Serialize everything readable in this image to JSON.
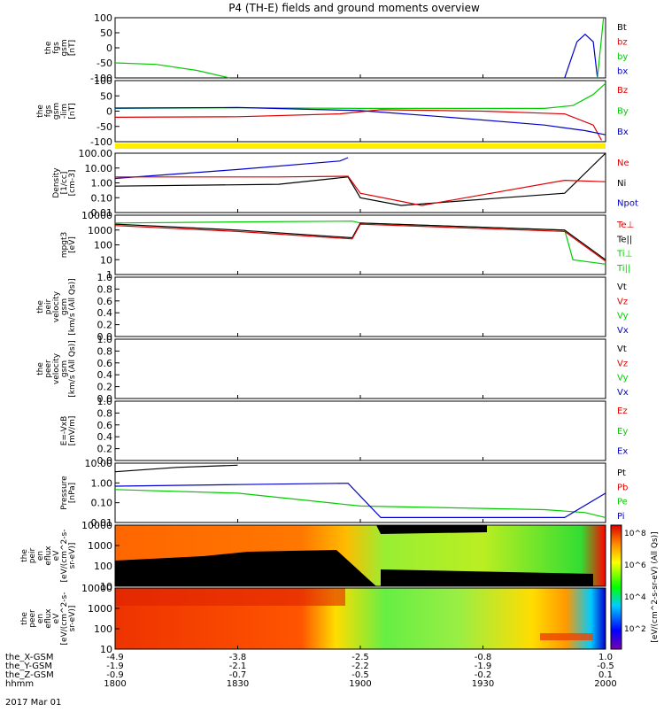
{
  "title": "P4 (TH-E) fields and ground moments overview",
  "date_label": "2017 Mar 01",
  "colors": {
    "black": "#000000",
    "red": "#dd0000",
    "green": "#00cc00",
    "blue": "#0000cc",
    "yellow": "#ffee00"
  },
  "panels": [
    {
      "id": "fgs",
      "ylabel": [
        "the",
        "fgs",
        "gsm",
        "[nT]"
      ],
      "ticks": [
        "100",
        "50",
        "0",
        "-50",
        "-100"
      ],
      "legend": [
        {
          "label": "Bt",
          "color": "#000000"
        },
        {
          "label": "bz",
          "color": "#dd0000"
        },
        {
          "label": "by",
          "color": "#00cc00"
        },
        {
          "label": "bx",
          "color": "#0000cc"
        }
      ]
    },
    {
      "id": "fgs_lim",
      "ylabel": [
        "the",
        "fgs",
        "gsm",
        "-lim",
        "[nT]"
      ],
      "ticks": [
        "100",
        "50",
        "0",
        "-50",
        "-100"
      ],
      "legend": [
        {
          "label": "Bz",
          "color": "#dd0000"
        },
        {
          "label": "By",
          "color": "#00cc00"
        },
        {
          "label": "Bx",
          "color": "#0000cc"
        }
      ]
    },
    {
      "id": "density",
      "ylabel": [
        "Density",
        "[1/cc]",
        "[cm-3]"
      ],
      "ticks": [
        "100.00",
        "10.00",
        "1.00",
        "0.10",
        "0.01"
      ],
      "legend": [
        {
          "label": "Ne",
          "color": "#dd0000"
        },
        {
          "label": "Ni",
          "color": "#000000"
        },
        {
          "label": "Npot",
          "color": "#0000cc"
        }
      ]
    },
    {
      "id": "temp",
      "ylabel": [
        "mpgt3",
        "[eV]"
      ],
      "ticks": [
        "10000",
        "1000",
        "100",
        "10",
        "1"
      ],
      "legend": [
        {
          "label": "Te⊥",
          "color": "#dd0000"
        },
        {
          "label": "Te||",
          "color": "#000000"
        },
        {
          "label": "Ti⊥",
          "color": "#00cc00"
        },
        {
          "label": "Ti||",
          "color": "#00cc00"
        }
      ]
    },
    {
      "id": "peir_vel",
      "ylabel": [
        "the",
        "peir",
        "velocity",
        "gsm",
        "[km/s (All Qs)]"
      ],
      "ticks": [
        "1.0",
        "0.8",
        "0.6",
        "0.4",
        "0.2",
        "0.0"
      ],
      "legend": [
        {
          "label": "Vt",
          "color": "#000000"
        },
        {
          "label": "Vz",
          "color": "#dd0000"
        },
        {
          "label": "Vy",
          "color": "#00cc00"
        },
        {
          "label": "Vx",
          "color": "#0000cc"
        }
      ]
    },
    {
      "id": "peer_vel",
      "ylabel": [
        "the",
        "peer",
        "velocity",
        "gsm",
        "[km/s (All Qs)]"
      ],
      "ticks": [
        "1.0",
        "0.8",
        "0.6",
        "0.4",
        "0.2",
        "0.0"
      ],
      "legend": [
        {
          "label": "Vt",
          "color": "#000000"
        },
        {
          "label": "Vz",
          "color": "#dd0000"
        },
        {
          "label": "Vy",
          "color": "#00cc00"
        },
        {
          "label": "Vx",
          "color": "#0000cc"
        }
      ]
    },
    {
      "id": "efield",
      "ylabel": [
        "E=-VxB",
        "[mV/m]"
      ],
      "ticks": [
        "1.0",
        "0.8",
        "0.6",
        "0.4",
        "0.2",
        "0.0"
      ],
      "legend": [
        {
          "label": "Ez",
          "color": "#dd0000"
        },
        {
          "label": "Ey",
          "color": "#00cc00"
        },
        {
          "label": "Ex",
          "color": "#0000cc"
        }
      ]
    },
    {
      "id": "pressure",
      "ylabel": [
        "Pressure",
        "[nPa]"
      ],
      "ticks": [
        "10.00",
        "1.00",
        "0.10",
        "0.01"
      ],
      "legend": [
        {
          "label": "Pt",
          "color": "#000000"
        },
        {
          "label": "Pb",
          "color": "#dd0000"
        },
        {
          "label": "Pe",
          "color": "#00cc00"
        },
        {
          "label": "Pi",
          "color": "#0000cc"
        }
      ]
    },
    {
      "id": "peir_spec",
      "ylabel": [
        "the",
        "peir",
        "en",
        "eflux",
        "eV",
        "[eV/(cm^2-s-",
        "sr-eV)]"
      ],
      "ticks": [
        "10000",
        "1000",
        "100",
        "10"
      ],
      "legend": []
    },
    {
      "id": "peer_spec",
      "ylabel": [
        "the",
        "peer",
        "en",
        "eflux",
        "eV",
        "[eV/(cm^2-s-",
        "sr-eV)]"
      ],
      "ticks": [
        "10000",
        "1000",
        "100",
        "10"
      ],
      "legend": []
    }
  ],
  "colorbar": {
    "label": "[eV/(cm^2-s-sr-eV) (All Qs)]",
    "ticks": [
      "10^8",
      "10^6",
      "10^4",
      "10^2"
    ]
  },
  "xaxis": {
    "row_labels": [
      "the_X-GSM",
      "the_Y-GSM",
      "the_Z-GSM",
      "hhmm"
    ],
    "columns": [
      {
        "x": "-4.9",
        "y": "-1.9",
        "z": "-0.9",
        "t": "1800"
      },
      {
        "x": "-3.8",
        "y": "-2.1",
        "z": "-0.7",
        "t": "1830"
      },
      {
        "x": "-2.5",
        "y": "-2.2",
        "z": "-0.5",
        "t": "1900"
      },
      {
        "x": "-0.8",
        "y": "-1.9",
        "z": "-0.2",
        "t": "1930"
      },
      {
        "x": "1.0",
        "y": "-0.5",
        "z": "0.1",
        "t": "2000"
      }
    ]
  },
  "chart_data": {
    "type": "line",
    "title": "P4 (TH-E) fields and ground moments overview",
    "x_label": "hhmm",
    "x_ticks": [
      "1800",
      "1830",
      "1900",
      "1930",
      "2000"
    ],
    "series": [
      {
        "panel": "fgs",
        "name": "by",
        "x": [
          1800,
          1810,
          1820,
          1828
        ],
        "values": [
          -50,
          -55,
          -75,
          -100
        ]
      },
      {
        "panel": "fgs",
        "name": "bx",
        "x": [
          1950,
          1953,
          1955,
          1957,
          1958
        ],
        "values": [
          -100,
          20,
          45,
          20,
          -100
        ]
      },
      {
        "panel": "fgs",
        "name": "by",
        "x": [
          1958,
          1959.5
        ],
        "values": [
          -100,
          100
        ]
      },
      {
        "panel": "fgs_lim",
        "name": "Bz",
        "x": [
          1800,
          1830,
          1855,
          1905,
          1930,
          1950,
          1957,
          1959
        ],
        "values": [
          -32,
          -30,
          -20,
          -5,
          -10,
          -20,
          -60,
          -115
        ]
      },
      {
        "panel": "fgs_lim",
        "name": "By",
        "x": [
          1800,
          1830,
          1900,
          1945,
          1952,
          1957,
          1960
        ],
        "values": [
          0,
          2,
          0,
          0,
          10,
          50,
          90
        ]
      },
      {
        "panel": "fgs_lim",
        "name": "Bx",
        "x": [
          1800,
          1830,
          1900,
          1920,
          1945,
          1955,
          1960
        ],
        "values": [
          1,
          3,
          -8,
          -30,
          -60,
          -80,
          -95
        ]
      },
      {
        "panel": "density",
        "name": "Npot",
        "x": [
          1800,
          1830,
          1855,
          1857
        ],
        "values": [
          2,
          8,
          30,
          50
        ]
      },
      {
        "panel": "density",
        "name": "Ni",
        "x": [
          1800,
          1840,
          1857,
          1900,
          1910,
          1935,
          1950,
          1960
        ],
        "values": [
          0.6,
          0.8,
          2.5,
          0.1,
          0.03,
          0.1,
          0.2,
          200
        ]
      },
      {
        "panel": "density",
        "name": "Ne",
        "x": [
          1800,
          1840,
          1857,
          1900,
          1915,
          1950,
          1960
        ],
        "values": [
          2.5,
          2.5,
          2.8,
          0.2,
          0.03,
          1.5,
          1.2
        ]
      },
      {
        "panel": "temp",
        "name": "Ti||",
        "x": [
          1800,
          1830,
          1858,
          1900,
          1950,
          1952,
          1960
        ],
        "values": [
          3000,
          3500,
          4000,
          3000,
          1000,
          10,
          5
        ]
      },
      {
        "panel": "temp",
        "name": "Te||",
        "x": [
          1800,
          1830,
          1858,
          1900,
          1950,
          1960
        ],
        "values": [
          2500,
          1000,
          300,
          3000,
          1000,
          10
        ]
      },
      {
        "panel": "temp",
        "name": "Te⊥",
        "x": [
          1800,
          1830,
          1858,
          1900,
          1950,
          1960
        ],
        "values": [
          2000,
          800,
          250,
          2500,
          800,
          8
        ]
      },
      {
        "panel": "pressure",
        "name": "Pt",
        "x": [
          1800,
          1815,
          1830
        ],
        "values": [
          6,
          11,
          15
        ]
      },
      {
        "panel": "pressure",
        "name": "Pe",
        "x": [
          1800,
          1830,
          1900,
          1945,
          1955,
          1960
        ],
        "values": [
          0.5,
          0.3,
          0.05,
          0.03,
          0.02,
          0.01
        ]
      },
      {
        "panel": "pressure",
        "name": "Pi",
        "x": [
          1800,
          1830,
          1857,
          1905,
          1950,
          1960
        ],
        "values": [
          0.8,
          1.0,
          1.2,
          0.01,
          0.01,
          0.3
        ]
      }
    ],
    "legend_position": "right"
  }
}
